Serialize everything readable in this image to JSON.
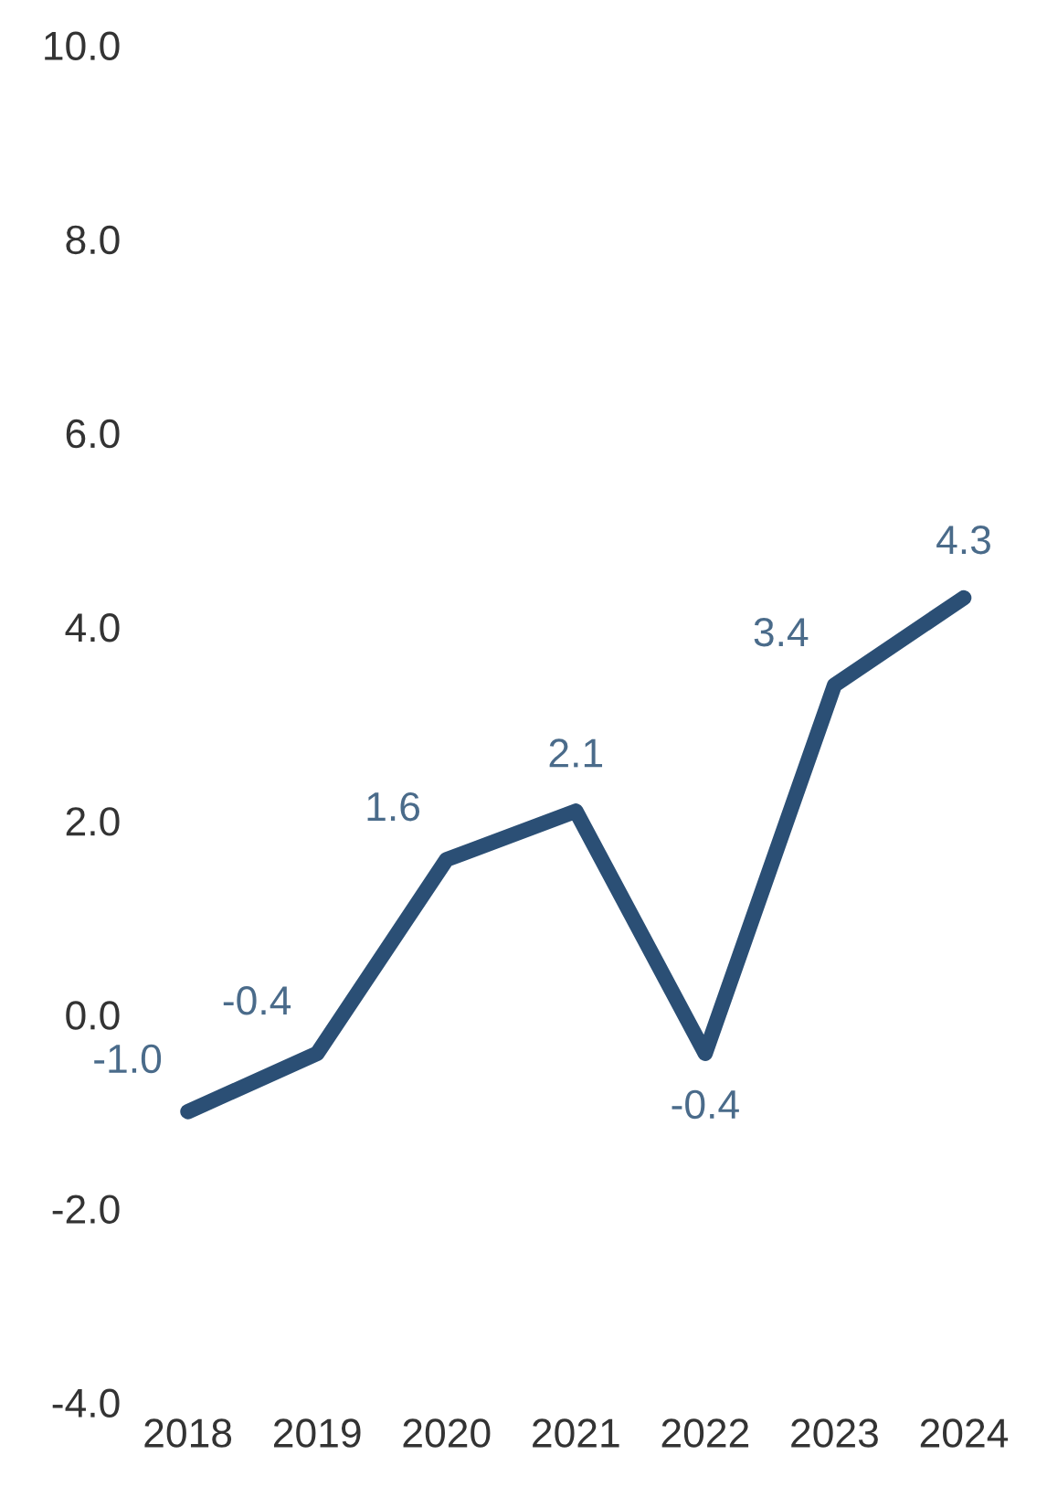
{
  "chart_data": {
    "type": "line",
    "categories": [
      "2018",
      "2019",
      "2020",
      "2021",
      "2022",
      "2023",
      "2024"
    ],
    "series": [
      {
        "color": "#2b4f75",
        "values": [
          -1.0,
          -0.4,
          1.6,
          2.1,
          -0.4,
          3.4,
          4.3
        ],
        "value_labels": [
          "-1.0",
          "-0.4",
          "1.6",
          "2.1",
          "-0.4",
          "3.4",
          "4.3"
        ]
      }
    ],
    "ylim": [
      -4,
      10
    ],
    "yticks": [
      {
        "value": -4,
        "label": "-4.0"
      },
      {
        "value": -2,
        "label": "-2.0"
      },
      {
        "value": 0,
        "label": "0.0"
      },
      {
        "value": 2,
        "label": "2.0"
      },
      {
        "value": 4,
        "label": "4.0"
      },
      {
        "value": 6,
        "label": "6.0"
      },
      {
        "value": 8,
        "label": "8.0"
      },
      {
        "value": 10,
        "label": "10.0"
      }
    ],
    "grid": false,
    "marker": "none",
    "line_style": "solid"
  }
}
